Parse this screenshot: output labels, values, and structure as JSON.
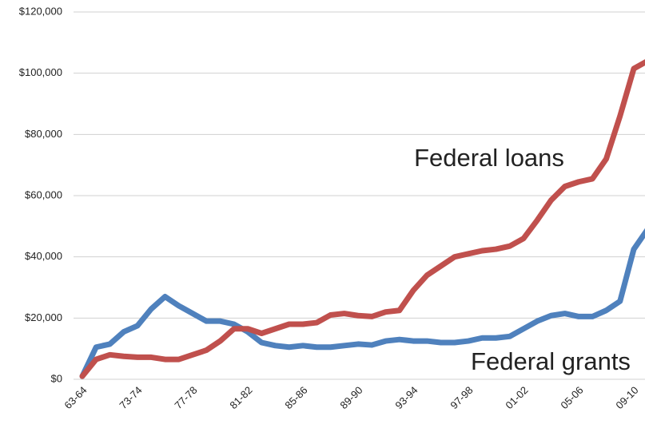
{
  "chart_data": {
    "type": "line",
    "categories": [
      "63-64",
      null,
      null,
      null,
      "73-74",
      null,
      null,
      null,
      "77-78",
      null,
      null,
      null,
      "81-82",
      null,
      null,
      null,
      "85-86",
      null,
      null,
      null,
      "89-90",
      null,
      null,
      null,
      "93-94",
      null,
      null,
      null,
      "97-98",
      null,
      null,
      null,
      "01-02",
      null,
      null,
      null,
      "05-06",
      null,
      null,
      null,
      "09-10",
      null
    ],
    "series": [
      {
        "name": "Federal loans",
        "color": "#c0504d",
        "values": [
          1000,
          6500,
          8000,
          7500,
          7200,
          7200,
          6500,
          6500,
          8000,
          9500,
          12500,
          16500,
          16500,
          15000,
          16500,
          18000,
          18000,
          18500,
          21000,
          21500,
          20800,
          20500,
          22000,
          22500,
          29000,
          34000,
          37000,
          40000,
          41000,
          42000,
          42500,
          43500,
          46000,
          52000,
          58500,
          63000,
          64500,
          65500,
          72000,
          86000,
          101500,
          104000
        ]
      },
      {
        "name": "Federal grants",
        "color": "#4f81bd",
        "values": [
          1000,
          10500,
          11500,
          15500,
          17500,
          23000,
          27000,
          24000,
          21500,
          19000,
          19000,
          18000,
          15500,
          12000,
          11000,
          10500,
          11000,
          10500,
          10500,
          11000,
          11500,
          11200,
          12500,
          13000,
          12500,
          12500,
          12000,
          12000,
          12500,
          13500,
          13500,
          14000,
          16500,
          19000,
          20800,
          21500,
          20500,
          20500,
          22500,
          25500,
          42500,
          49000
        ]
      }
    ],
    "ylim": [
      0,
      120000
    ],
    "yticks": [
      {
        "value": 0,
        "label": "$0"
      },
      {
        "value": 20000,
        "label": "$20,000"
      },
      {
        "value": 40000,
        "label": "$40,000"
      },
      {
        "value": 60000,
        "label": "$60,000"
      },
      {
        "value": 80000,
        "label": "$80,000"
      },
      {
        "value": 100000,
        "label": "$100,000"
      },
      {
        "value": 120000,
        "label": "$120,000"
      }
    ],
    "grid": true
  }
}
